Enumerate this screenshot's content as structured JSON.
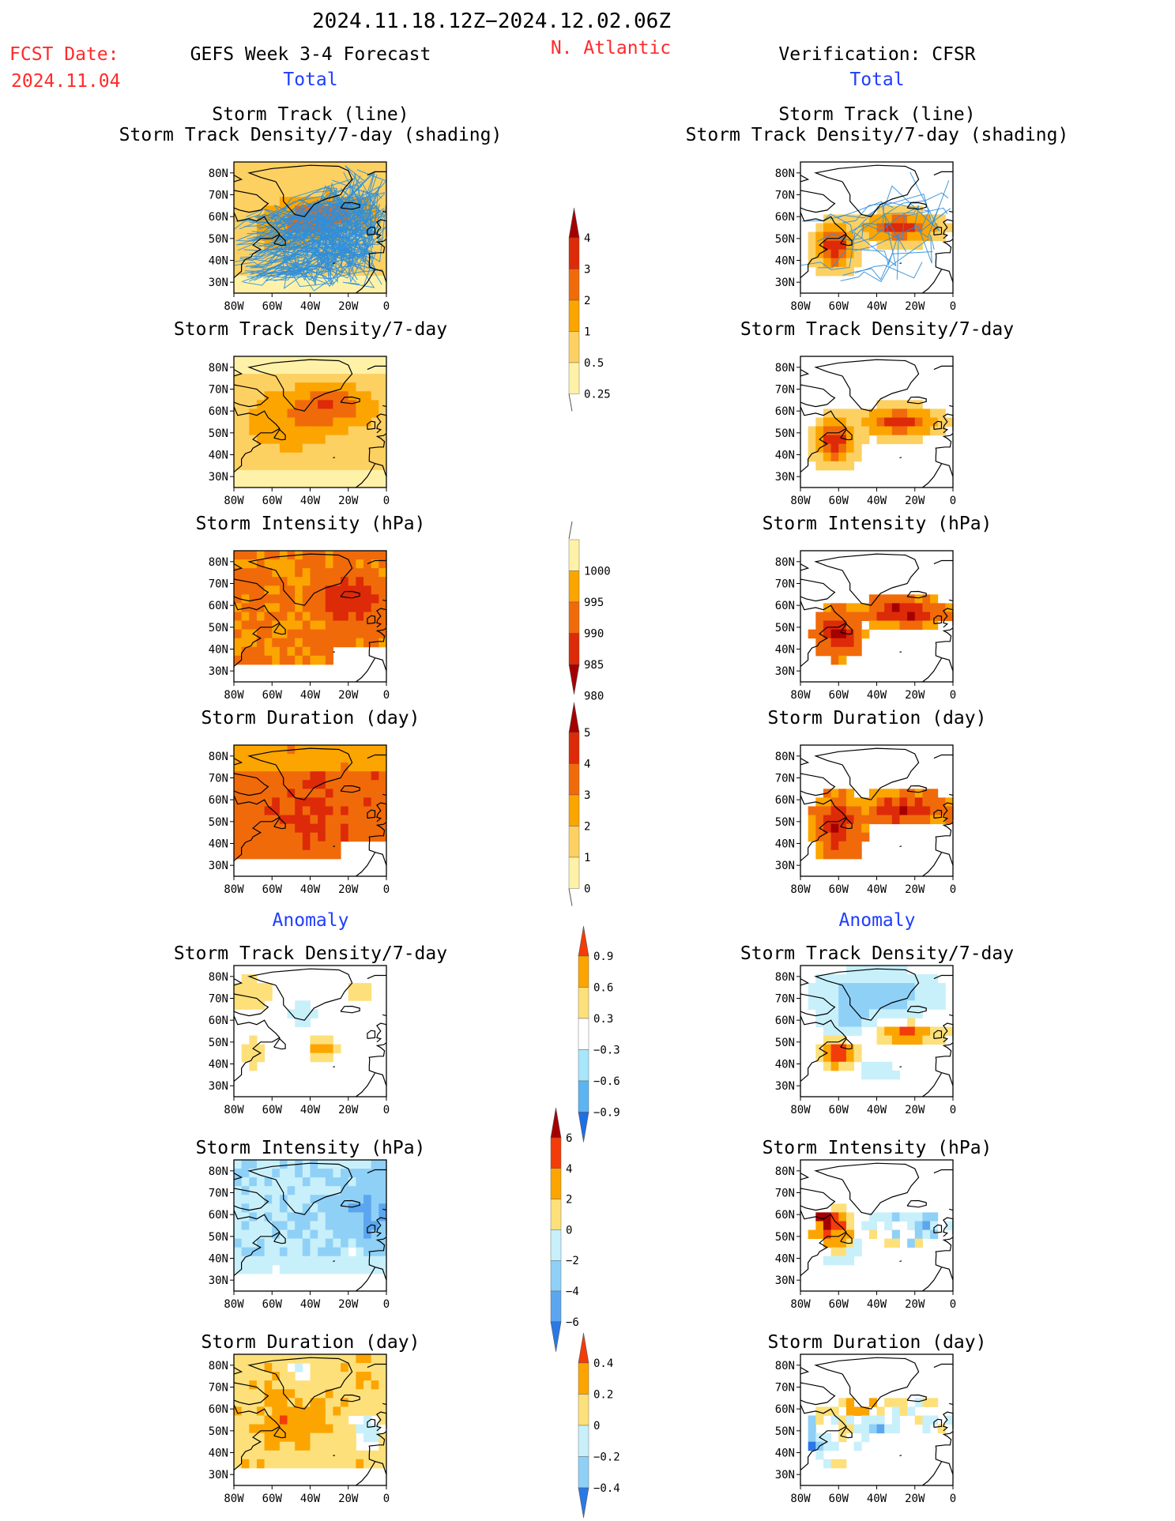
{
  "header": {
    "date_range": "2024.11.18.12Z−2024.12.02.06Z",
    "fcst_label": "FCST Date:",
    "fcst_date": "2024.11.04",
    "left_title": "GEFS Week 3-4 Forecast",
    "region": "N. Atlantic",
    "right_title": "Verification: CFSR"
  },
  "sections": {
    "total": "Total",
    "anomaly": "Anomaly"
  },
  "panel_titles": {
    "track_line": "Storm Track (line)",
    "track_shading": "Storm Track Density/7-day (shading)",
    "density": "Storm Track Density/7-day",
    "intensity": "Storm Intensity (hPa)",
    "duration": "Storm Duration (day)"
  },
  "axes": {
    "lat_ticks": [
      "80N",
      "70N",
      "60N",
      "50N",
      "40N",
      "30N"
    ],
    "lon_ticks": [
      "80W",
      "60W",
      "40W",
      "20W",
      "0"
    ]
  },
  "colorbars": {
    "density": {
      "labels": [
        "4",
        "3",
        "2",
        "1",
        "0.5",
        "0.25"
      ],
      "colors": [
        "#a50000",
        "#dd2a08",
        "#f06a0a",
        "#fca500",
        "#fdd062",
        "#fff2a8"
      ]
    },
    "intensity": {
      "labels": [
        "1000",
        "995",
        "990",
        "985",
        "980"
      ],
      "colors": [
        "#fff2a8",
        "#fca500",
        "#f06a0a",
        "#dd2a08",
        "#a50000"
      ]
    },
    "duration": {
      "labels": [
        "5",
        "4",
        "3",
        "2",
        "1",
        "0"
      ],
      "colors": [
        "#a50000",
        "#dd2a08",
        "#f06a0a",
        "#fca500",
        "#fdd062",
        "#fff2a8"
      ]
    },
    "density_anom": {
      "labels": [
        "0.9",
        "0.6",
        "0.3",
        "−0.3",
        "−0.6",
        "−0.9"
      ],
      "colors": [
        "#f23c0a",
        "#fca500",
        "#fde07a",
        "#ffffff",
        "#a8e6fb",
        "#5db4f2",
        "#1f6ee6"
      ]
    },
    "intensity_anom": {
      "labels": [
        "6",
        "4",
        "2",
        "0",
        "−2",
        "−4",
        "−6"
      ],
      "colors": [
        "#a50000",
        "#f23c0a",
        "#fca500",
        "#fde07a",
        "#c8f0fb",
        "#8fd0f7",
        "#5ba6ef",
        "#2a78e6"
      ]
    },
    "duration_anom": {
      "labels": [
        "0.4",
        "0.2",
        "0",
        "−0.2",
        "−0.4"
      ],
      "colors": [
        "#f23c0a",
        "#fca500",
        "#fde07a",
        "#c8f0fb",
        "#8fd0f7",
        "#2a78e6"
      ]
    }
  },
  "panels": {
    "forecast_track": {
      "field": "Forecast storm track density (shading) with individual GEFS storm tracks (lines)",
      "pattern": "broad",
      "min_level": 0.25
    },
    "forecast_density": {
      "pattern": "broad",
      "max_level": 3
    },
    "forecast_intensity": {
      "pattern": "broad",
      "range_hPa": [
        980,
        995
      ]
    },
    "forecast_duration": {
      "pattern": "broad",
      "range_day": [
        2,
        4
      ]
    },
    "cfsr_track": {
      "pattern": "two lobes"
    },
    "cfsr_density": {
      "pattern": "two lobes",
      "max_level": 4
    },
    "cfsr_intensity": {
      "pattern": "sparse",
      "range_hPa": [
        980,
        1000
      ]
    },
    "cfsr_duration": {
      "pattern": "sparse",
      "range_day": [
        1,
        5
      ]
    },
    "forecast_density_anom": {
      "range": [
        -0.6,
        0.9
      ]
    },
    "forecast_intensity_anom": {
      "range_hPa": [
        -6,
        2
      ]
    },
    "forecast_duration_anom": {
      "range_day": [
        -0.4,
        0.4
      ]
    },
    "cfsr_density_anom": {
      "range": [
        -0.9,
        0.9
      ]
    },
    "cfsr_intensity_anom": {
      "range_hPa": [
        -6,
        6
      ]
    },
    "cfsr_duration_anom": {
      "range_day": [
        -0.4,
        0.4
      ]
    }
  }
}
